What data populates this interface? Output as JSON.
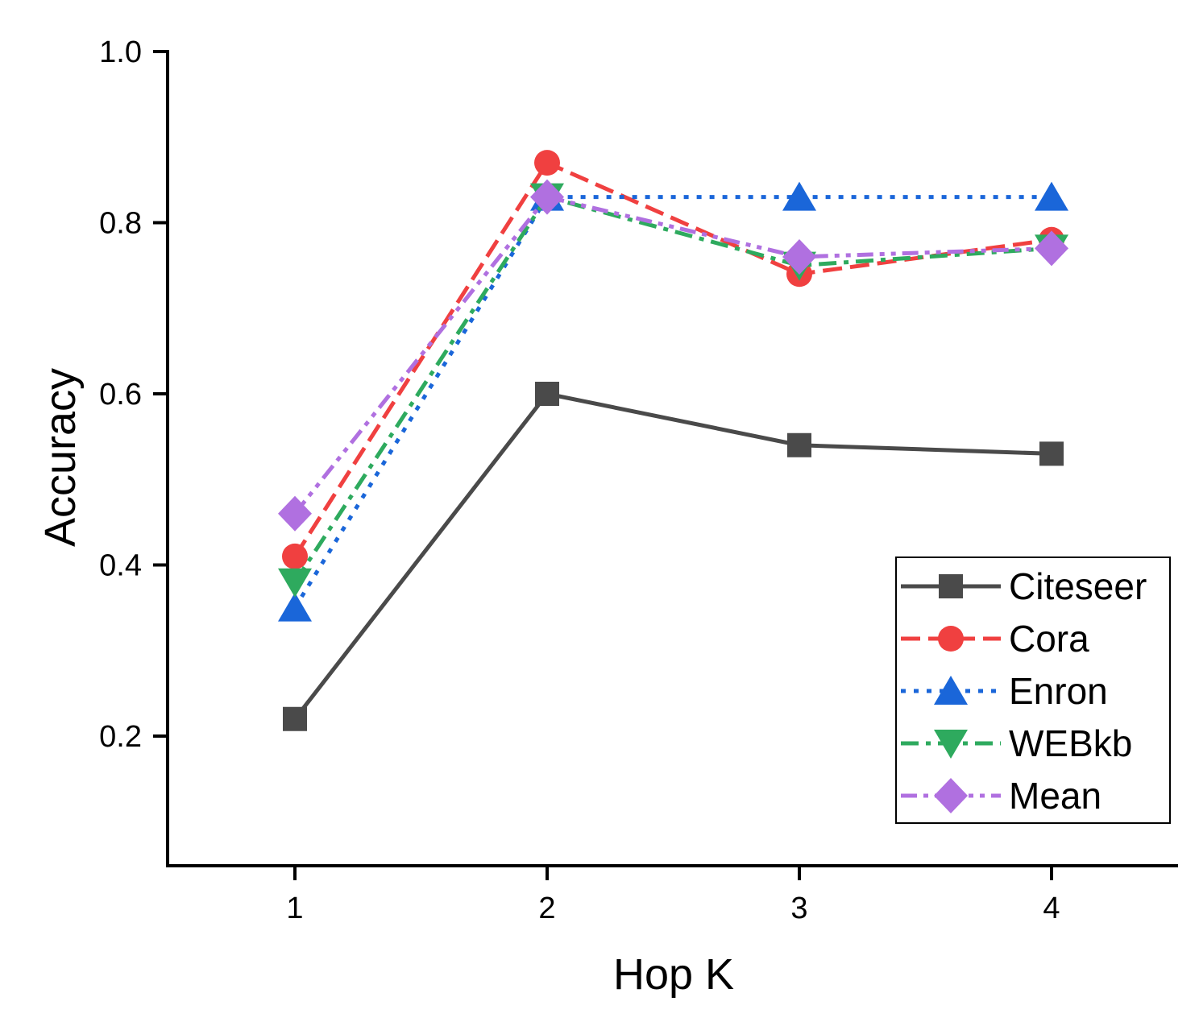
{
  "chart_data": {
    "type": "line",
    "title": "",
    "xlabel": "Hop K",
    "ylabel": "Accuracy",
    "x": [
      1,
      2,
      3,
      4
    ],
    "x_tick_labels": [
      "1",
      "2",
      "3",
      "4"
    ],
    "y_tick_labels": [
      "0.2",
      "0.4",
      "0.6",
      "0.8",
      "1.0"
    ],
    "y_ticks": [
      0.2,
      0.4,
      0.6,
      0.8,
      1.0
    ],
    "xlim": [
      0.5,
      4.5
    ],
    "ylim": [
      0.05,
      1.0
    ],
    "grid": false,
    "legend_position": "bottom-right",
    "series": [
      {
        "name": "Citeseer",
        "values": [
          0.22,
          0.6,
          0.54,
          0.53
        ],
        "color": "#4a4a4a",
        "line_style": "solid",
        "marker": "square"
      },
      {
        "name": "Cora",
        "values": [
          0.41,
          0.87,
          0.74,
          0.78
        ],
        "color": "#f04040",
        "line_style": "dashed",
        "marker": "circle"
      },
      {
        "name": "Enron",
        "values": [
          0.35,
          0.83,
          0.83,
          0.83
        ],
        "color": "#1a66d9",
        "line_style": "dotted",
        "marker": "triangle-up"
      },
      {
        "name": "WEBkb",
        "values": [
          0.38,
          0.83,
          0.75,
          0.77
        ],
        "color": "#2eaa5e",
        "line_style": "dashdot",
        "marker": "triangle-down"
      },
      {
        "name": "Mean",
        "values": [
          0.46,
          0.83,
          0.76,
          0.77
        ],
        "color": "#b070e0",
        "line_style": "dashdotdot",
        "marker": "diamond"
      }
    ]
  }
}
